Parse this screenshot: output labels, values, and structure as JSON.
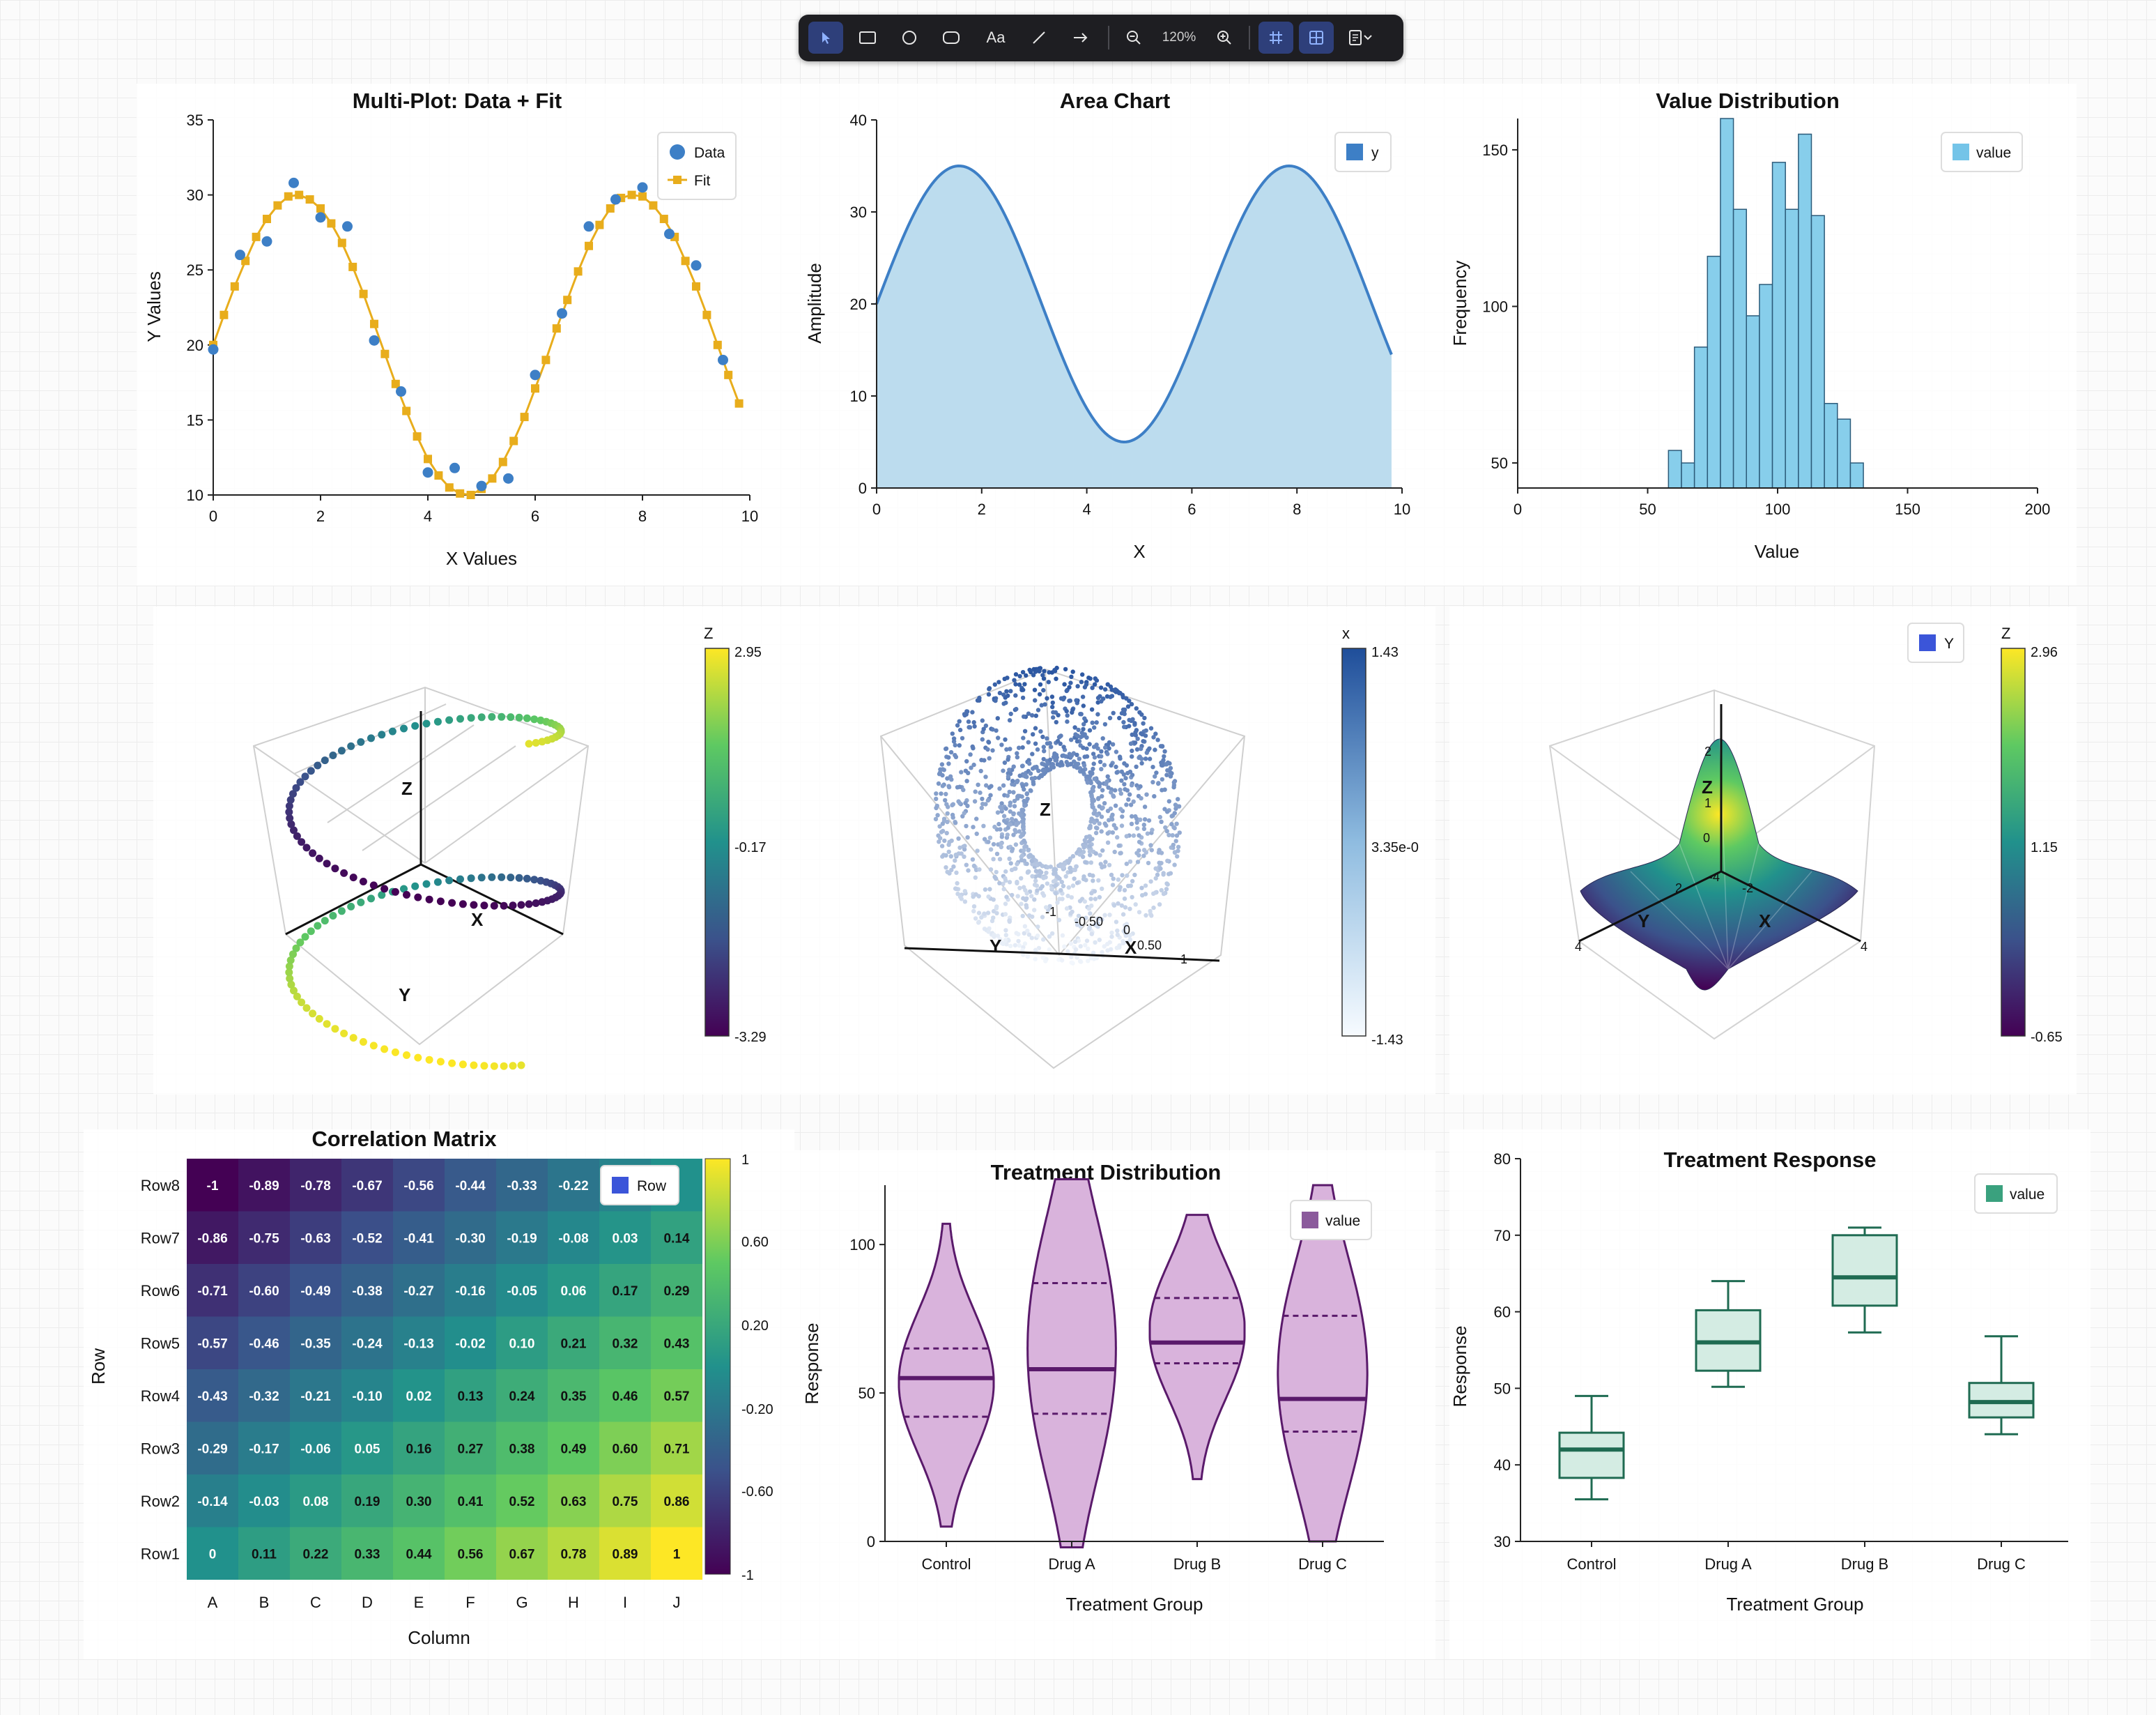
{
  "toolbar": {
    "zoom_label": "120%",
    "text_tool_label": "Aa"
  },
  "chart_data": [
    {
      "type": "line",
      "title": "Multi-Plot: Data + Fit",
      "xlabel": "X Values",
      "ylabel": "Y Values",
      "xlim": [
        0,
        10
      ],
      "ylim": [
        10,
        35
      ],
      "xticks": [
        "0",
        "2",
        "4",
        "6",
        "8",
        "10"
      ],
      "yticks": [
        "10",
        "15",
        "20",
        "25",
        "30",
        "35"
      ],
      "legend": [
        "Data",
        "Fit"
      ],
      "legend_position": "top-right",
      "series": [
        {
          "name": "Data",
          "kind": "scatter",
          "color": "#3d7fc6",
          "x": [
            0,
            0.5,
            1.0,
            1.5,
            2.0,
            2.5,
            3.0,
            3.5,
            4.0,
            4.5,
            5.0,
            5.5,
            6.0,
            6.5,
            7.0,
            7.5,
            8.0,
            8.5,
            9.0,
            9.5
          ],
          "y": [
            19.7,
            26.0,
            26.9,
            30.8,
            28.5,
            27.9,
            20.3,
            16.9,
            11.5,
            11.8,
            10.6,
            11.1,
            18.0,
            22.1,
            27.9,
            29.7,
            30.5,
            27.4,
            25.3,
            19.0
          ]
        },
        {
          "name": "Fit",
          "kind": "line",
          "color": "#e8ad1c",
          "x": [
            0,
            0.2,
            0.4,
            0.6,
            0.8,
            1.0,
            1.2,
            1.4,
            1.6,
            1.8,
            2.0,
            2.2,
            2.4,
            2.6,
            2.8,
            3.0,
            3.2,
            3.4,
            3.6,
            3.8,
            4.0,
            4.2,
            4.4,
            4.6,
            4.8,
            5.0,
            5.2,
            5.4,
            5.6,
            5.8,
            6.0,
            6.2,
            6.4,
            6.6,
            6.8,
            7.0,
            7.2,
            7.4,
            7.6,
            7.8,
            8.0,
            8.2,
            8.4,
            8.6,
            8.8,
            9.0,
            9.2,
            9.4,
            9.6,
            9.8
          ],
          "y": [
            20.0,
            22.0,
            23.9,
            25.6,
            27.2,
            28.4,
            29.3,
            29.9,
            30.0,
            29.7,
            29.1,
            28.1,
            26.8,
            25.2,
            23.4,
            21.4,
            19.4,
            17.4,
            15.6,
            13.9,
            12.4,
            11.3,
            10.5,
            10.1,
            10.0,
            10.4,
            11.1,
            12.2,
            13.6,
            15.2,
            17.1,
            19.0,
            21.1,
            23.0,
            24.9,
            26.6,
            28.0,
            29.1,
            29.8,
            30.0,
            29.9,
            29.3,
            28.4,
            27.2,
            25.6,
            23.9,
            22.0,
            20.0,
            18.0,
            16.1
          ]
        }
      ]
    },
    {
      "type": "area",
      "title": "Area Chart",
      "xlabel": "X",
      "ylabel": "Amplitude",
      "xlim": [
        0,
        10
      ],
      "ylim": [
        0,
        40
      ],
      "xticks": [
        "0",
        "2",
        "4",
        "6",
        "8",
        "10"
      ],
      "yticks": [
        "0",
        "10",
        "20",
        "30",
        "40"
      ],
      "legend": [
        "y"
      ],
      "legend_position": "top-right",
      "series": [
        {
          "name": "y",
          "color": "#3d7fc6",
          "fill": "#bcdcee",
          "function": "20+15*sin(x)",
          "x_range": [
            0,
            9.8
          ]
        }
      ]
    },
    {
      "type": "bar",
      "subtype": "histogram",
      "title": "Value Distribution",
      "xlabel": "Value",
      "ylabel": "Frequency",
      "xlim": [
        0,
        200
      ],
      "ylim": [
        42,
        160
      ],
      "xticks": [
        "0",
        "50",
        "100",
        "150",
        "200"
      ],
      "yticks": [
        "50",
        "100",
        "150"
      ],
      "legend": [
        "value"
      ],
      "legend_position": "top-right",
      "bin_edges": [
        58,
        63,
        68,
        73,
        78,
        83,
        88,
        93,
        98,
        103,
        108,
        113,
        118,
        123,
        128,
        133,
        138,
        143,
        148
      ],
      "values": [
        54,
        50,
        87,
        116,
        160,
        131,
        97,
        107,
        146,
        131,
        155,
        129,
        69,
        64,
        50,
        42,
        42,
        42
      ]
    },
    {
      "type": "scatter",
      "subtype": "3d",
      "colorbar_title": "Z",
      "colorbar_ticks": [
        "2.95",
        "-0.17",
        "-3.29"
      ],
      "axis_labels": [
        "X",
        "Y",
        "Z"
      ]
    },
    {
      "type": "scatter",
      "subtype": "3d",
      "colorbar_title": "x",
      "colorbar_ticks": [
        "1.43",
        "3.35e-0",
        "-1.43"
      ],
      "axis_labels": [
        "X",
        "Y",
        "Z"
      ],
      "axis_ticks": [
        "0.50",
        "0",
        "-0.50",
        "-1",
        "1"
      ]
    },
    {
      "type": "surface",
      "subtype": "3d",
      "colorbar_title": "Z",
      "colorbar_ticks": [
        "2.96",
        "1.15",
        "-0.65"
      ],
      "legend": [
        "Y"
      ],
      "axis_labels": [
        "X",
        "Y",
        "Z"
      ],
      "axis_ticks": [
        "4",
        "4",
        "-4",
        "-2",
        "2",
        "0",
        "1",
        "2"
      ]
    },
    {
      "type": "heatmap",
      "title": "Correlation Matrix",
      "xlabel": "Column",
      "ylabel": "Row",
      "legend": [
        "Row"
      ],
      "columns": [
        "A",
        "B",
        "C",
        "D",
        "E",
        "F",
        "G",
        "H",
        "I",
        "J"
      ],
      "rows": [
        "Row8",
        "Row7",
        "Row6",
        "Row5",
        "Row4",
        "Row3",
        "Row2",
        "Row1"
      ],
      "values": [
        [
          "-1",
          "-0.89",
          "-0.78",
          "-0.67",
          "-0.56",
          "-0.44",
          "-0.33",
          "-0.22",
          "",
          ""
        ],
        [
          "-0.86",
          "-0.75",
          "-0.63",
          "-0.52",
          "-0.41",
          "-0.30",
          "-0.19",
          "-0.08",
          "0.03",
          "0.14"
        ],
        [
          "-0.71",
          "-0.60",
          "-0.49",
          "-0.38",
          "-0.27",
          "-0.16",
          "-0.05",
          "0.06",
          "0.17",
          "0.29"
        ],
        [
          "-0.57",
          "-0.46",
          "-0.35",
          "-0.24",
          "-0.13",
          "-0.02",
          "0.10",
          "0.21",
          "0.32",
          "0.43"
        ],
        [
          "-0.43",
          "-0.32",
          "-0.21",
          "-0.10",
          "0.02",
          "0.13",
          "0.24",
          "0.35",
          "0.46",
          "0.57"
        ],
        [
          "-0.29",
          "-0.17",
          "-0.06",
          "0.05",
          "0.16",
          "0.27",
          "0.38",
          "0.49",
          "0.60",
          "0.71"
        ],
        [
          "-0.14",
          "-0.03",
          "0.08",
          "0.19",
          "0.30",
          "0.41",
          "0.52",
          "0.63",
          "0.75",
          "0.86"
        ],
        [
          "0",
          "0.11",
          "0.22",
          "0.33",
          "0.44",
          "0.56",
          "0.67",
          "0.78",
          "0.89",
          "1"
        ]
      ],
      "colorbar_ticks": [
        "1",
        "0.60",
        "0.20",
        "-0.20",
        "-0.60",
        "-1"
      ]
    },
    {
      "type": "violin",
      "title": "Treatment Distribution",
      "xlabel": "Treatment Group",
      "ylabel": "Response",
      "ylim": [
        0,
        120
      ],
      "yticks": [
        "0",
        "50",
        "100"
      ],
      "legend": [
        "value"
      ],
      "legend_position": "top-right",
      "categories": [
        "Control",
        "Drug A",
        "Drug B",
        "Drug C"
      ],
      "groups": [
        {
          "min": 5,
          "max": 107,
          "median": 55,
          "q1": 42,
          "q3": 65,
          "peak": 55
        },
        {
          "min": -2,
          "max": 122,
          "median": 58,
          "q1": 43,
          "q3": 87,
          "peak": 90
        },
        {
          "min": 21,
          "max": 110,
          "median": 67,
          "q1": 60,
          "q3": 82,
          "peak": 72
        },
        {
          "min": 0,
          "max": 120,
          "median": 48,
          "q1": 37,
          "q3": 76,
          "peak": 45
        }
      ]
    },
    {
      "type": "box",
      "title": "Treatment Response",
      "xlabel": "Treatment Group",
      "ylabel": "Response",
      "ylim": [
        30,
        80
      ],
      "yticks": [
        "30",
        "40",
        "50",
        "60",
        "70",
        "80"
      ],
      "legend": [
        "value"
      ],
      "legend_position": "top-right",
      "categories": [
        "Control",
        "Drug A",
        "Drug B",
        "Drug C"
      ],
      "boxes": [
        {
          "min": 35.5,
          "q1": 38.3,
          "median": 42.0,
          "q3": 44.2,
          "max": 49.0
        },
        {
          "min": 50.2,
          "q1": 52.3,
          "median": 56.0,
          "q3": 60.2,
          "max": 64.0
        },
        {
          "min": 57.3,
          "q1": 60.8,
          "median": 64.5,
          "q3": 70.0,
          "max": 71.0
        },
        {
          "min": 44.0,
          "q1": 46.2,
          "median": 48.2,
          "q3": 50.7,
          "max": 56.8
        }
      ]
    }
  ]
}
